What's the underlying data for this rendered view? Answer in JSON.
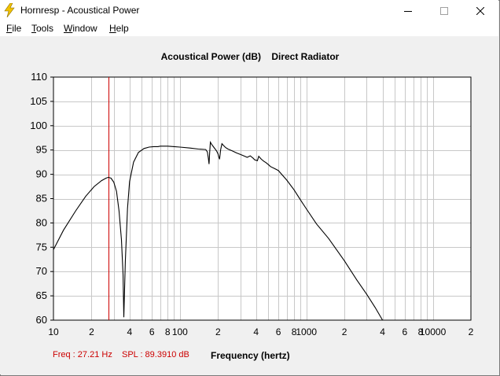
{
  "window": {
    "title": "Hornresp - Acoustical Power"
  },
  "menu": {
    "items": [
      "File",
      "Tools",
      "Window",
      "Help"
    ]
  },
  "readout": {
    "freq": "Freq : 27.21 Hz",
    "spl": "SPL : 89.3910 dB"
  },
  "colors": {
    "readout": "#cc0000",
    "cursor": "#cc0000",
    "curve": "#000000",
    "grid": "#c8c8c8",
    "plot_bg": "#ffffff"
  },
  "chart_data": {
    "type": "line",
    "title": "Acoustical Power (dB)    Direct Radiator",
    "xlabel": "Frequency (hertz)",
    "ylabel": "",
    "xscale": "log",
    "xlim": [
      10,
      20000
    ],
    "ylim": [
      60,
      110
    ],
    "y_ticks": [
      60,
      65,
      70,
      75,
      80,
      85,
      90,
      95,
      100,
      105,
      110
    ],
    "x_tick_labels": [
      {
        "x": 10,
        "label": "10"
      },
      {
        "x": 20,
        "label": "2"
      },
      {
        "x": 40,
        "label": "4"
      },
      {
        "x": 60,
        "label": "6"
      },
      {
        "x": 80,
        "label": "8"
      },
      {
        "x": 100,
        "label": "100"
      },
      {
        "x": 200,
        "label": "2"
      },
      {
        "x": 400,
        "label": "4"
      },
      {
        "x": 600,
        "label": "6"
      },
      {
        "x": 800,
        "label": "8"
      },
      {
        "x": 1000,
        "label": "1000"
      },
      {
        "x": 2000,
        "label": "2"
      },
      {
        "x": 4000,
        "label": "4"
      },
      {
        "x": 6000,
        "label": "6"
      },
      {
        "x": 8000,
        "label": "8"
      },
      {
        "x": 10000,
        "label": "10000"
      },
      {
        "x": 20000,
        "label": "2"
      }
    ],
    "cursor_x": 27.21,
    "series": [
      {
        "x": [
          10,
          12,
          15,
          18,
          21,
          24,
          26,
          27.2,
          28.5,
          30,
          31.5,
          33,
          34.5,
          35.5,
          36,
          37,
          38.5,
          40,
          43,
          47,
          52,
          57,
          62,
          67,
          70,
          80,
          90,
          100,
          120,
          140,
          160,
          165,
          168,
          170,
          172,
          174,
          178,
          185,
          195,
          200,
          203,
          206,
          210,
          215,
          220,
          230,
          240,
          260,
          280,
          300,
          320,
          340,
          360,
          380,
          390,
          400,
          410,
          420,
          440,
          460,
          480,
          500,
          520,
          560,
          600,
          700,
          800,
          900,
          1000,
          1200,
          1500,
          2000,
          2500,
          3000,
          3500,
          4000,
          4500,
          5000
        ],
        "y": [
          74.5,
          78.5,
          82.5,
          85.5,
          87.5,
          88.7,
          89.2,
          89.39,
          89.2,
          88.4,
          86.5,
          82.5,
          76.5,
          69.5,
          60.6,
          72,
          83,
          88.5,
          92.5,
          94.5,
          95.3,
          95.6,
          95.7,
          95.7,
          95.8,
          95.8,
          95.7,
          95.6,
          95.4,
          95.2,
          95.1,
          94.6,
          93.2,
          92.1,
          94.5,
          96.6,
          96.2,
          95.6,
          94.8,
          94.2,
          93.6,
          93.1,
          95.1,
          96.3,
          96,
          95.5,
          95.2,
          94.8,
          94.4,
          94.1,
          93.8,
          93.5,
          93.8,
          93.3,
          93,
          92.9,
          92.8,
          93.7,
          93.1,
          92.7,
          92.4,
          92,
          91.6,
          91.2,
          90.8,
          88.8,
          86.8,
          84.7,
          82.9,
          79.8,
          76.8,
          72.2,
          68.3,
          65.3,
          62.6,
          60,
          57.5,
          55.3
        ]
      }
    ]
  }
}
